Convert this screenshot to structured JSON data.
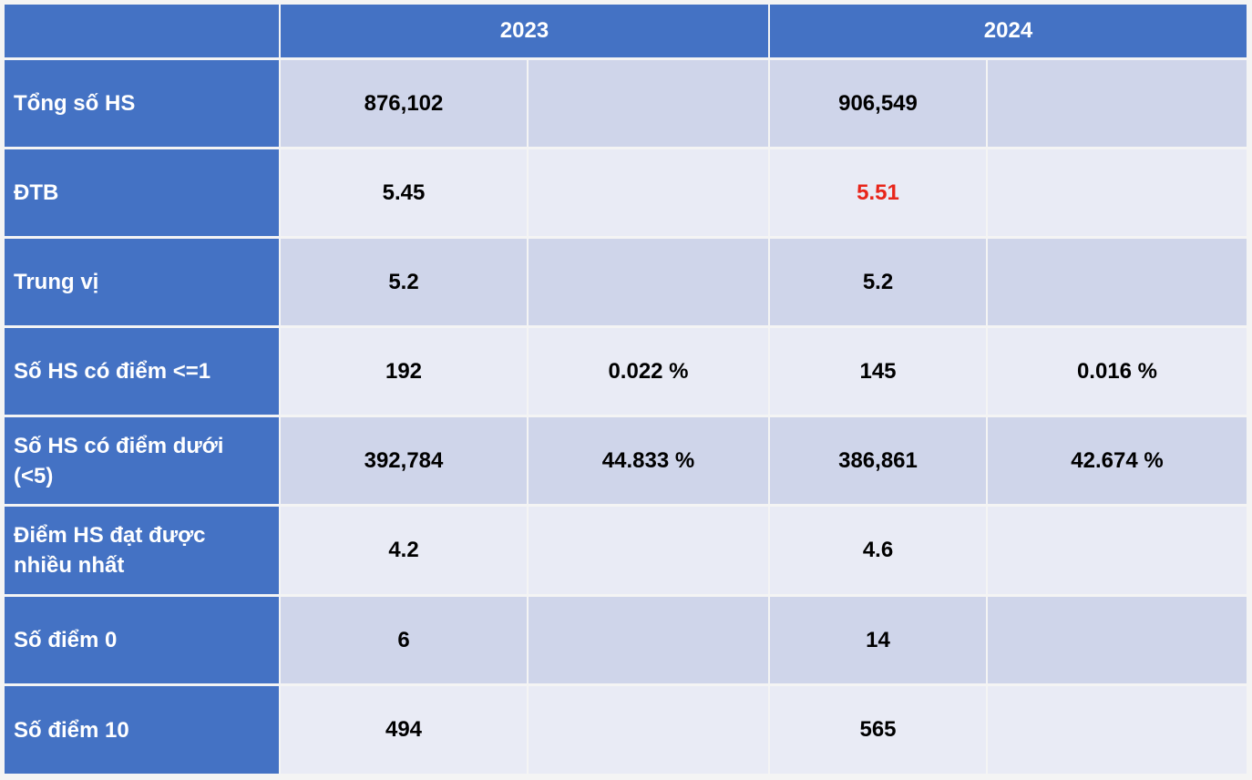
{
  "header": {
    "years": [
      "2023",
      "2024"
    ]
  },
  "rows": [
    {
      "label": "Tổng số HS",
      "cells": [
        "876,102",
        null,
        "906,549",
        null
      ]
    },
    {
      "label": "ĐTB",
      "cells": [
        "5.45",
        null,
        "5.51",
        null
      ],
      "highlight": {
        "cell": 2,
        "color": "#e8251a"
      }
    },
    {
      "label": "Trung vị",
      "cells": [
        "5.2",
        null,
        "5.2",
        null
      ]
    },
    {
      "label": "Số HS có điểm <=1",
      "cells": [
        "192",
        "0.022 %",
        "145",
        "0.016 %"
      ]
    },
    {
      "label": "Số HS có điểm dưới (<5)",
      "cells": [
        "392,784",
        "44.833 %",
        "386,861",
        "42.674 %"
      ]
    },
    {
      "label": "Điểm HS đạt được nhiều nhất",
      "cells": [
        "4.2",
        null,
        "4.6",
        null
      ]
    },
    {
      "label": "Số điểm 0",
      "cells": [
        "6",
        null,
        "14",
        null
      ]
    },
    {
      "label": "Số điểm 10",
      "cells": [
        "494",
        null,
        "565",
        null
      ]
    }
  ]
}
